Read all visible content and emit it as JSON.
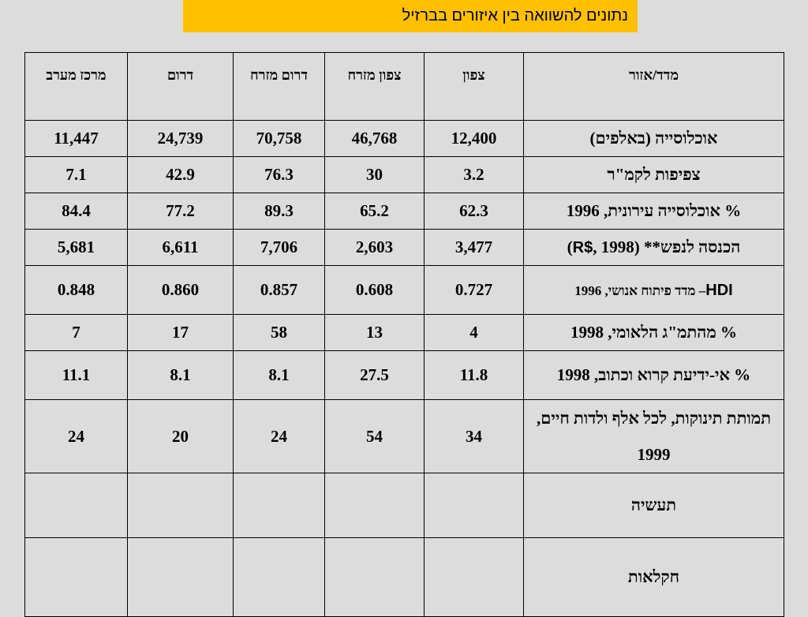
{
  "title": "נתונים להשוואה בין איזורים בברזיל",
  "columns": [
    "מדד/אזור",
    "צפון",
    "צפון מזרח",
    "דרום מזרח",
    "דרום",
    "מרכז מערב"
  ],
  "rows": [
    {
      "label": "אוכלוסייה (באלפים)",
      "values": [
        "12,400",
        "46,768",
        "70,758",
        "24,739",
        "11,447"
      ]
    },
    {
      "label": "צפיפות לקמ\"ר",
      "values": [
        "3.2",
        "30",
        "76.3",
        "42.9",
        "7.1"
      ]
    },
    {
      "label": "% אוכלוסייה עירונית, 1996",
      "values": [
        "62.3",
        "65.2",
        "89.3",
        "77.2",
        "84.4"
      ]
    },
    {
      "label_pre": "הכנסה לנפש** (",
      "label_latin": "R$",
      "label_post": ", 1998)",
      "values": [
        "3,477",
        "2,603",
        "7,706",
        "6,611",
        "5,681"
      ]
    },
    {
      "label_latin": "HDI",
      "label_post": "– מדד פיתוח אנושי, 1996",
      "values": [
        "0.727",
        "0.608",
        "0.857",
        "0.860",
        "0.848"
      ]
    },
    {
      "label": "% מהתמ\"ג הלאומי, 1998",
      "values": [
        "4",
        "13",
        "58",
        "17",
        "7"
      ]
    },
    {
      "label": "% אי-ידיעת קרוא וכתוב, 1998",
      "values": [
        "11.8",
        "27.5",
        "8.1",
        "8.1",
        "11.1"
      ]
    },
    {
      "label": "תמותת תינוקות, לכל אלף ולדות חיים, 1999",
      "values": [
        "34",
        "54",
        "24",
        "20",
        "24"
      ]
    },
    {
      "label": "תעשיה",
      "values": [
        "",
        "",
        "",
        "",
        ""
      ]
    },
    {
      "label": "חקלאות",
      "values": [
        "",
        "",
        "",
        "",
        ""
      ]
    }
  ]
}
